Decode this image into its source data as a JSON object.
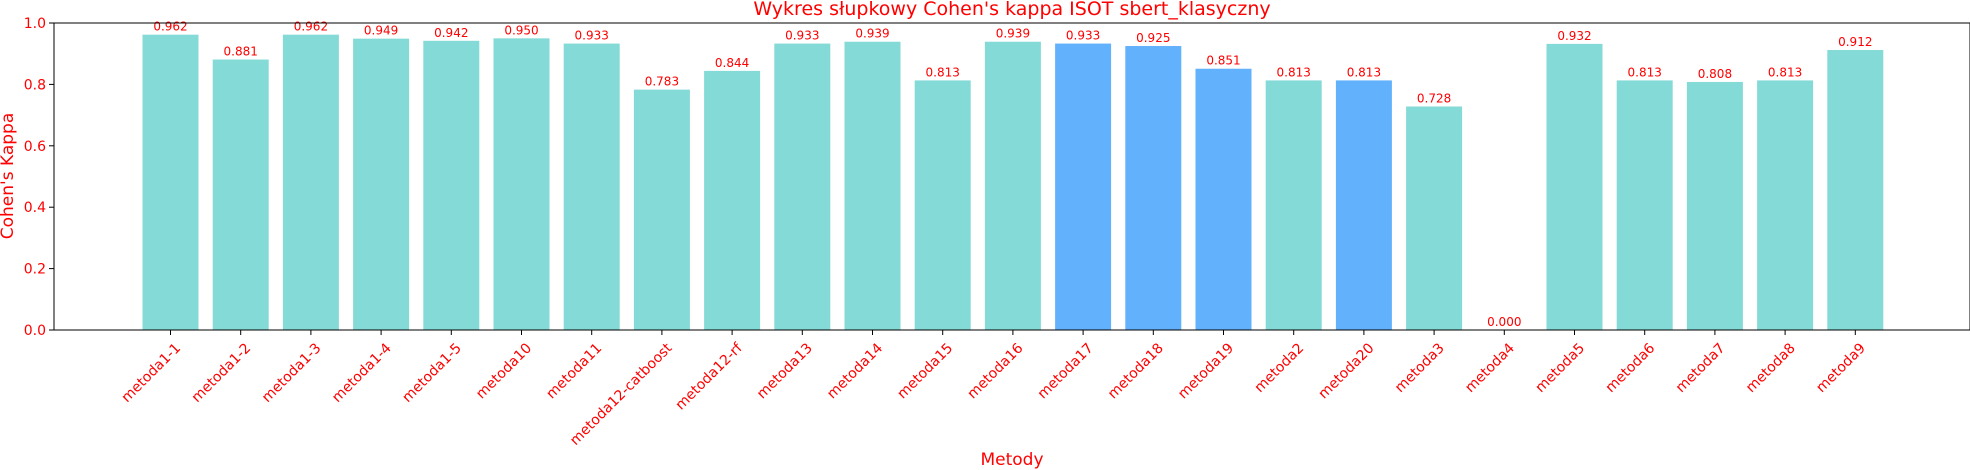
{
  "chart_data": {
    "type": "bar",
    "title": "Wykres słupkowy Cohen's kappa ISOT sbert_klasyczny",
    "xlabel": "Metody",
    "ylabel": "Cohen's Kappa",
    "ylim": [
      0,
      1.0
    ],
    "yticks": [
      "0.0",
      "0.2",
      "0.4",
      "0.6",
      "0.8",
      "1.0"
    ],
    "grid": false,
    "legend": "none",
    "text_color": "#ff0000",
    "colors": {
      "default": "#84dad6",
      "highlight": "#62b1fc"
    },
    "categories": [
      "metoda1-1",
      "metoda1-2",
      "metoda1-3",
      "metoda1-4",
      "metoda1-5",
      "metoda10",
      "metoda11",
      "metoda12-catboost",
      "metoda12-rf",
      "metoda13",
      "metoda14",
      "metoda15",
      "metoda16",
      "metoda17",
      "metoda18",
      "metoda19",
      "metoda2",
      "metoda20",
      "metoda3",
      "metoda4",
      "metoda5",
      "metoda6",
      "metoda7",
      "metoda8",
      "metoda9"
    ],
    "values": [
      0.962,
      0.881,
      0.962,
      0.949,
      0.942,
      0.95,
      0.933,
      0.783,
      0.844,
      0.933,
      0.939,
      0.813,
      0.939,
      0.933,
      0.925,
      0.851,
      0.813,
      0.813,
      0.728,
      0.0,
      0.932,
      0.813,
      0.808,
      0.813,
      0.912
    ],
    "value_labels": [
      "0.962",
      "0.881",
      "0.962",
      "0.949",
      "0.942",
      "0.950",
      "0.933",
      "0.783",
      "0.844",
      "0.933",
      "0.939",
      "0.813",
      "0.939",
      "0.933",
      "0.925",
      "0.851",
      "0.813",
      "0.813",
      "0.728",
      "0.000",
      "0.932",
      "0.813",
      "0.808",
      "0.813",
      "0.912"
    ],
    "highlighted": [
      false,
      false,
      false,
      false,
      false,
      false,
      false,
      false,
      false,
      false,
      false,
      false,
      false,
      true,
      true,
      true,
      false,
      true,
      false,
      false,
      false,
      false,
      false,
      false,
      false
    ]
  }
}
